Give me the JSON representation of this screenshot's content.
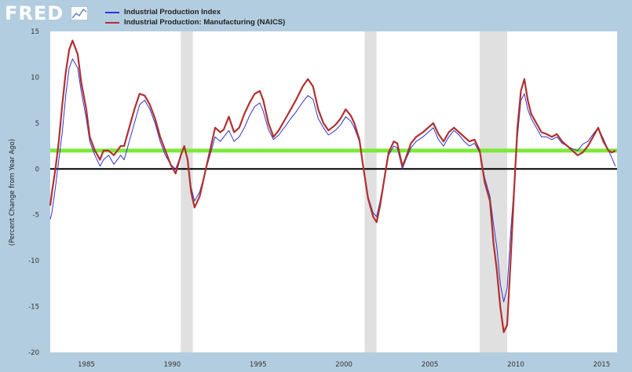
{
  "header": {
    "logo_text": "FRED"
  },
  "colors": {
    "background": "#b3cde0",
    "plot_area": "#ffffff",
    "recession_band": "#e0e0e0",
    "series_1": "#3333cc",
    "series_2": "#b03030",
    "reference_line_green": "#7fe83a",
    "zero_line": "#000000"
  },
  "chart_data": {
    "type": "line",
    "title": "",
    "xlabel": "",
    "ylabel": "(Percent Change from Year Ago)",
    "xlim": [
      1982.9,
      2015.9
    ],
    "ylim": [
      -20,
      15
    ],
    "x_ticks": [
      1985,
      1990,
      1995,
      2000,
      2005,
      2010,
      2015
    ],
    "y_ticks": [
      15,
      10,
      5,
      0,
      -5,
      -10,
      -15,
      -20
    ],
    "grid": false,
    "legend_position": "top-left",
    "recessions": [
      [
        1990.5,
        1991.2
      ],
      [
        2001.2,
        2001.9
      ],
      [
        2007.9,
        2009.5
      ]
    ],
    "reference_lines": [
      {
        "y": 2.0,
        "color": "#7fe83a"
      },
      {
        "y": 0,
        "color": "#000000"
      }
    ],
    "series": [
      {
        "name": "Industrial Production Index",
        "color": "#3333cc",
        "points": [
          [
            1982.9,
            -5.5
          ],
          [
            1983.0,
            -4.7
          ],
          [
            1983.2,
            -2
          ],
          [
            1983.4,
            1
          ],
          [
            1983.6,
            4
          ],
          [
            1983.8,
            8
          ],
          [
            1984.0,
            11
          ],
          [
            1984.2,
            12
          ],
          [
            1984.5,
            11
          ],
          [
            1984.7,
            8.5
          ],
          [
            1985.0,
            5.5
          ],
          [
            1985.2,
            3
          ],
          [
            1985.5,
            1.5
          ],
          [
            1985.8,
            0.3
          ],
          [
            1986.0,
            1
          ],
          [
            1986.3,
            1.5
          ],
          [
            1986.6,
            0.5
          ],
          [
            1987.0,
            1.5
          ],
          [
            1987.2,
            1
          ],
          [
            1987.5,
            3
          ],
          [
            1987.8,
            5
          ],
          [
            1988.1,
            7
          ],
          [
            1988.4,
            7.5
          ],
          [
            1988.7,
            6.5
          ],
          [
            1989.0,
            5
          ],
          [
            1989.3,
            3
          ],
          [
            1989.6,
            1.5
          ],
          [
            1989.9,
            0.5
          ],
          [
            1990.2,
            0
          ],
          [
            1990.5,
            1.5
          ],
          [
            1990.7,
            2.3
          ],
          [
            1990.9,
            1
          ],
          [
            1991.1,
            -2
          ],
          [
            1991.3,
            -3.5
          ],
          [
            1991.6,
            -2.5
          ],
          [
            1991.9,
            -0.5
          ],
          [
            1992.2,
            1.5
          ],
          [
            1992.5,
            3.5
          ],
          [
            1992.8,
            3
          ],
          [
            1993.0,
            3.5
          ],
          [
            1993.3,
            4.2
          ],
          [
            1993.6,
            3
          ],
          [
            1993.9,
            3.5
          ],
          [
            1994.2,
            4.5
          ],
          [
            1994.5,
            5.8
          ],
          [
            1994.8,
            6.8
          ],
          [
            1995.1,
            7.2
          ],
          [
            1995.3,
            6.3
          ],
          [
            1995.6,
            4.3
          ],
          [
            1995.9,
            3.2
          ],
          [
            1996.2,
            3.7
          ],
          [
            1996.6,
            4.7
          ],
          [
            1996.9,
            5.5
          ],
          [
            1997.2,
            6.2
          ],
          [
            1997.6,
            7.3
          ],
          [
            1997.9,
            8
          ],
          [
            1998.2,
            7.6
          ],
          [
            1998.5,
            5.5
          ],
          [
            1998.8,
            4.5
          ],
          [
            1999.1,
            3.7
          ],
          [
            1999.5,
            4.2
          ],
          [
            1999.8,
            4.8
          ],
          [
            2000.1,
            5.7
          ],
          [
            2000.4,
            5.2
          ],
          [
            2000.6,
            4.5
          ],
          [
            2000.9,
            3
          ],
          [
            2001.1,
            0.5
          ],
          [
            2001.4,
            -3
          ],
          [
            2001.7,
            -4.8
          ],
          [
            2001.9,
            -5.2
          ],
          [
            2002.1,
            -3.5
          ],
          [
            2002.4,
            -0.5
          ],
          [
            2002.6,
            1.5
          ],
          [
            2002.9,
            2.5
          ],
          [
            2003.1,
            2.3
          ],
          [
            2003.4,
            0
          ],
          [
            2003.6,
            1
          ],
          [
            2003.9,
            2.3
          ],
          [
            2004.2,
            3
          ],
          [
            2004.6,
            3.5
          ],
          [
            2004.9,
            4
          ],
          [
            2005.2,
            4.5
          ],
          [
            2005.5,
            3.2
          ],
          [
            2005.8,
            2.5
          ],
          [
            2006.1,
            3.5
          ],
          [
            2006.4,
            4.2
          ],
          [
            2006.7,
            3.7
          ],
          [
            2007.0,
            3
          ],
          [
            2007.3,
            2.5
          ],
          [
            2007.6,
            2.8
          ],
          [
            2007.9,
            1.8
          ],
          [
            2008.2,
            -1
          ],
          [
            2008.5,
            -3
          ],
          [
            2008.7,
            -6
          ],
          [
            2008.9,
            -8.5
          ],
          [
            2009.1,
            -12.5
          ],
          [
            2009.3,
            -14.5
          ],
          [
            2009.5,
            -13
          ],
          [
            2009.7,
            -7
          ],
          [
            2009.9,
            -2
          ],
          [
            2010.1,
            3.5
          ],
          [
            2010.3,
            7.5
          ],
          [
            2010.5,
            8.2
          ],
          [
            2010.7,
            6.5
          ],
          [
            2010.9,
            5.5
          ],
          [
            2011.2,
            4.5
          ],
          [
            2011.5,
            3.5
          ],
          [
            2011.8,
            3.5
          ],
          [
            2012.1,
            3.2
          ],
          [
            2012.4,
            3.5
          ],
          [
            2012.7,
            2.8
          ],
          [
            2013.0,
            2.5
          ],
          [
            2013.3,
            2.2
          ],
          [
            2013.6,
            2
          ],
          [
            2013.9,
            2.7
          ],
          [
            2014.2,
            3
          ],
          [
            2014.5,
            3.8
          ],
          [
            2014.8,
            4.5
          ],
          [
            2015.1,
            3.3
          ],
          [
            2015.4,
            2
          ],
          [
            2015.6,
            1.2
          ],
          [
            2015.8,
            0.3
          ]
        ]
      },
      {
        "name": "Industrial Production: Manufacturing (NAICS)",
        "color": "#b03030",
        "points": [
          [
            1982.9,
            -4
          ],
          [
            1983.0,
            -2.5
          ],
          [
            1983.2,
            0
          ],
          [
            1983.4,
            3
          ],
          [
            1983.6,
            7
          ],
          [
            1983.8,
            10.5
          ],
          [
            1984.0,
            13
          ],
          [
            1984.2,
            14
          ],
          [
            1984.5,
            12.5
          ],
          [
            1984.7,
            9.5
          ],
          [
            1985.0,
            6.5
          ],
          [
            1985.2,
            3.5
          ],
          [
            1985.5,
            2
          ],
          [
            1985.8,
            1
          ],
          [
            1986.0,
            2
          ],
          [
            1986.3,
            2
          ],
          [
            1986.6,
            1.5
          ],
          [
            1987.0,
            2.5
          ],
          [
            1987.2,
            2.5
          ],
          [
            1987.5,
            4.5
          ],
          [
            1987.8,
            6.5
          ],
          [
            1988.1,
            8.2
          ],
          [
            1988.4,
            8
          ],
          [
            1988.7,
            7
          ],
          [
            1989.0,
            5.5
          ],
          [
            1989.3,
            3.5
          ],
          [
            1989.6,
            2
          ],
          [
            1989.9,
            0.5
          ],
          [
            1990.2,
            -0.5
          ],
          [
            1990.5,
            1.5
          ],
          [
            1990.7,
            2.5
          ],
          [
            1990.9,
            1
          ],
          [
            1991.1,
            -2.5
          ],
          [
            1991.3,
            -4.2
          ],
          [
            1991.6,
            -3
          ],
          [
            1991.9,
            -0.5
          ],
          [
            1992.2,
            2
          ],
          [
            1992.5,
            4.5
          ],
          [
            1992.8,
            4
          ],
          [
            1993.0,
            4.3
          ],
          [
            1993.3,
            5.7
          ],
          [
            1993.6,
            4
          ],
          [
            1993.9,
            4.5
          ],
          [
            1994.2,
            6
          ],
          [
            1994.5,
            7.2
          ],
          [
            1994.8,
            8.2
          ],
          [
            1995.1,
            8.5
          ],
          [
            1995.3,
            7.5
          ],
          [
            1995.6,
            5
          ],
          [
            1995.9,
            3.5
          ],
          [
            1996.2,
            4.2
          ],
          [
            1996.6,
            5.5
          ],
          [
            1996.9,
            6.5
          ],
          [
            1997.2,
            7.5
          ],
          [
            1997.6,
            9
          ],
          [
            1997.9,
            9.8
          ],
          [
            1998.2,
            9
          ],
          [
            1998.5,
            6.5
          ],
          [
            1998.8,
            5
          ],
          [
            1999.1,
            4.2
          ],
          [
            1999.5,
            4.8
          ],
          [
            1999.8,
            5.5
          ],
          [
            2000.1,
            6.5
          ],
          [
            2000.4,
            5.8
          ],
          [
            2000.6,
            5
          ],
          [
            2000.9,
            3.2
          ],
          [
            2001.1,
            0.5
          ],
          [
            2001.4,
            -3.2
          ],
          [
            2001.7,
            -5.2
          ],
          [
            2001.9,
            -5.8
          ],
          [
            2002.1,
            -4
          ],
          [
            2002.4,
            -0.5
          ],
          [
            2002.6,
            1.8
          ],
          [
            2002.9,
            3
          ],
          [
            2003.1,
            2.8
          ],
          [
            2003.4,
            0.3
          ],
          [
            2003.6,
            1.2
          ],
          [
            2003.9,
            2.8
          ],
          [
            2004.2,
            3.5
          ],
          [
            2004.6,
            4
          ],
          [
            2004.9,
            4.5
          ],
          [
            2005.2,
            5
          ],
          [
            2005.5,
            3.8
          ],
          [
            2005.8,
            3
          ],
          [
            2006.1,
            4
          ],
          [
            2006.4,
            4.5
          ],
          [
            2006.7,
            4
          ],
          [
            2007.0,
            3.5
          ],
          [
            2007.3,
            3
          ],
          [
            2007.6,
            3.2
          ],
          [
            2007.9,
            2
          ],
          [
            2008.2,
            -1.5
          ],
          [
            2008.5,
            -3.5
          ],
          [
            2008.7,
            -8
          ],
          [
            2008.9,
            -11
          ],
          [
            2009.1,
            -15
          ],
          [
            2009.3,
            -17.8
          ],
          [
            2009.5,
            -17
          ],
          [
            2009.7,
            -10
          ],
          [
            2009.9,
            -2.5
          ],
          [
            2010.1,
            4.5
          ],
          [
            2010.3,
            8.5
          ],
          [
            2010.5,
            9.8
          ],
          [
            2010.7,
            7.5
          ],
          [
            2010.9,
            6
          ],
          [
            2011.2,
            5
          ],
          [
            2011.5,
            4
          ],
          [
            2011.8,
            3.8
          ],
          [
            2012.1,
            3.5
          ],
          [
            2012.4,
            3.8
          ],
          [
            2012.7,
            3
          ],
          [
            2013.0,
            2.5
          ],
          [
            2013.3,
            2
          ],
          [
            2013.6,
            1.5
          ],
          [
            2013.9,
            1.8
          ],
          [
            2014.2,
            2.5
          ],
          [
            2014.5,
            3.5
          ],
          [
            2014.8,
            4.5
          ],
          [
            2015.1,
            3
          ],
          [
            2015.4,
            2
          ],
          [
            2015.6,
            1.8
          ],
          [
            2015.8,
            2
          ]
        ]
      }
    ]
  }
}
